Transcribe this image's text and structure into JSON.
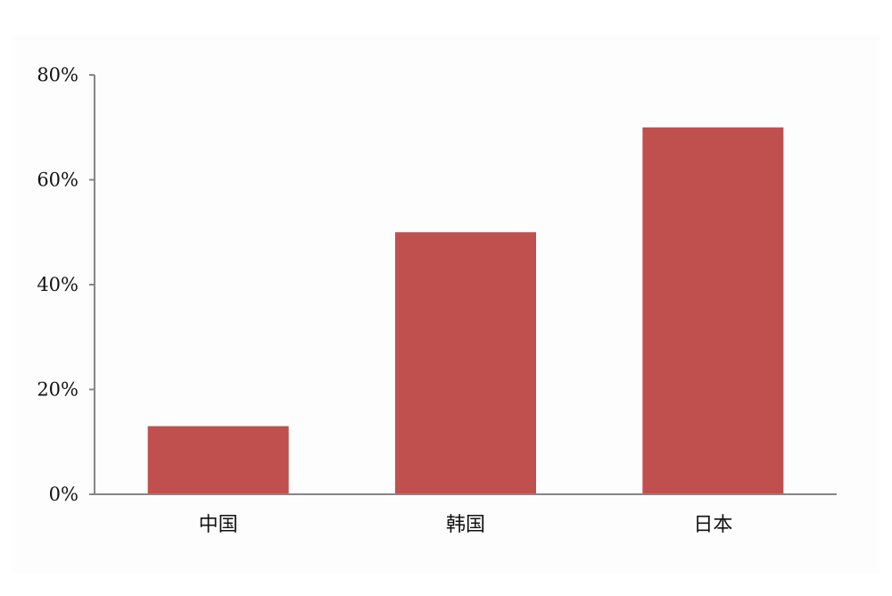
{
  "chart_data": {
    "type": "bar",
    "categories": [
      "中国",
      "韩国",
      "日本"
    ],
    "series": [
      {
        "values": [
          13,
          50,
          70
        ]
      }
    ],
    "value_format": "percent",
    "ylim": [
      0,
      80
    ],
    "yticks": [
      0,
      20,
      40,
      60,
      80
    ],
    "ytick_labels": [
      "0%",
      "20%",
      "40%",
      "60%",
      "80%"
    ],
    "title": "",
    "xlabel": "",
    "ylabel": "",
    "grid": false,
    "legend": "none",
    "colors": {
      "bar": "#c0504d",
      "axis": "#868686"
    }
  }
}
